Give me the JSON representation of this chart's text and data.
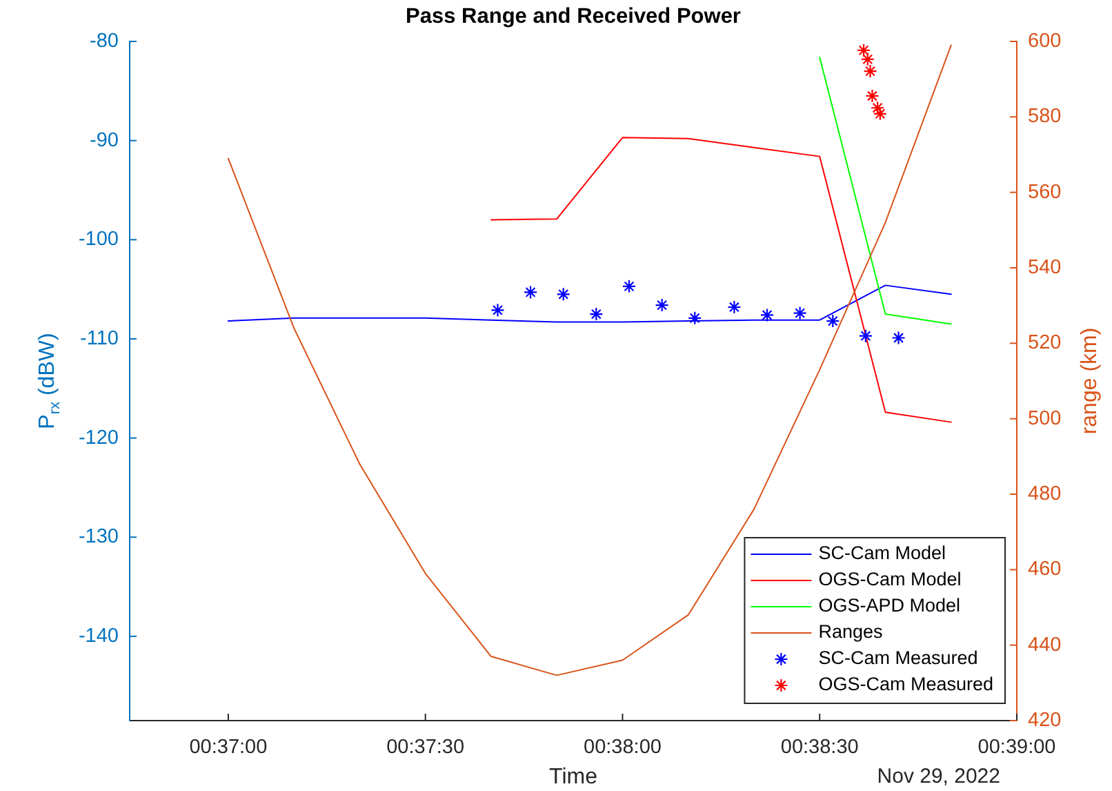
{
  "chart_data": {
    "type": "line",
    "title": "Pass Range and Received Power",
    "xlabel": "Time",
    "ylabel": "P$_{rx}$ (dBW)",
    "y2label": "range (km)",
    "annotations": [
      "Nov 29, 2022"
    ],
    "xlim": [
      "2022-11-29T00:36:45",
      "2022-11-29T00:39:00"
    ],
    "xticks": [
      {
        "value": "2022-11-29T00:37:00",
        "label": "00:37:00"
      },
      {
        "value": "2022-11-29T00:37:30",
        "label": "00:37:30"
      },
      {
        "value": "2022-11-29T00:38:00",
        "label": "00:38:00"
      },
      {
        "value": "2022-11-29T00:38:30",
        "label": "00:38:30"
      },
      {
        "value": "2022-11-29T00:39:00",
        "label": "00:39:00"
      }
    ],
    "ylim": [
      -148.5,
      -80
    ],
    "yticks": [
      -140,
      -130,
      -120,
      -110,
      -100,
      -90,
      -80
    ],
    "y2lim": [
      420,
      600
    ],
    "y2ticks": [
      420,
      440,
      460,
      480,
      500,
      520,
      540,
      560,
      580,
      600
    ],
    "legend": "bottom right",
    "series": [
      {
        "name": "SC-Cam Model",
        "color": "#0000ff",
        "x": [
          "2022-11-29T00:37:00",
          "2022-11-29T00:37:10",
          "2022-11-29T00:37:20",
          "2022-11-29T00:37:30",
          "2022-11-29T00:37:40",
          "2022-11-29T00:37:50",
          "2022-11-29T00:38:00",
          "2022-11-29T00:38:10",
          "2022-11-29T00:38:20",
          "2022-11-29T00:38:30",
          "2022-11-29T00:38:40",
          "2022-11-29T00:38:50"
        ],
        "values": [
          -108.2,
          -107.9,
          -107.9,
          -107.9,
          -108.1,
          -108.3,
          -108.3,
          -108.2,
          -108.1,
          -108.1,
          -104.6,
          -105.5
        ]
      },
      {
        "name": "OGS-Cam Model",
        "color": "#ff0000",
        "x": [
          "2022-11-29T00:37:40",
          "2022-11-29T00:37:50",
          "2022-11-29T00:38:00",
          "2022-11-29T00:38:10",
          "2022-11-29T00:38:20",
          "2022-11-29T00:38:30",
          "2022-11-29T00:38:40",
          "2022-11-29T00:38:50"
        ],
        "values": [
          -98.0,
          -97.9,
          -89.7,
          -89.8,
          -90.7,
          -91.6,
          -117.4,
          -118.4
        ]
      },
      {
        "name": "OGS-APD Model",
        "color": "#00ff00",
        "x": [
          "2022-11-29T00:38:30",
          "2022-11-29T00:38:40",
          "2022-11-29T00:38:50"
        ],
        "values": [
          -81.6,
          -107.5,
          -108.5
        ]
      },
      {
        "name": "Ranges",
        "color": "#d95319",
        "axis": "y2",
        "x": [
          "2022-11-29T00:37:00",
          "2022-11-29T00:37:10",
          "2022-11-29T00:37:20",
          "2022-11-29T00:37:30",
          "2022-11-29T00:37:40",
          "2022-11-29T00:37:50",
          "2022-11-29T00:38:00",
          "2022-11-29T00:38:10",
          "2022-11-29T00:38:20",
          "2022-11-29T00:38:30",
          "2022-11-29T00:38:40",
          "2022-11-29T00:38:50"
        ],
        "values": [
          569,
          524,
          488,
          459,
          437,
          432,
          436,
          448,
          476,
          513,
          552,
          599
        ]
      },
      {
        "name": "SC-Cam Measured",
        "type": "scatter",
        "color": "#0000ff",
        "marker": "cross",
        "x": [
          "2022-11-29T00:37:41",
          "2022-11-29T00:37:46",
          "2022-11-29T00:37:51",
          "2022-11-29T00:37:56",
          "2022-11-29T00:38:01",
          "2022-11-29T00:38:06",
          "2022-11-29T00:38:11",
          "2022-11-29T00:38:17",
          "2022-11-29T00:38:22",
          "2022-11-29T00:38:27",
          "2022-11-29T00:38:32",
          "2022-11-29T00:38:37",
          "2022-11-29T00:38:42"
        ],
        "values": [
          -107.1,
          -105.3,
          -105.5,
          -107.5,
          -104.7,
          -106.6,
          -107.9,
          -106.8,
          -107.6,
          -107.4,
          -108.2,
          -109.7,
          -109.9
        ]
      },
      {
        "name": "OGS-Cam Measured",
        "type": "scatter",
        "color": "#ff0000",
        "marker": "cross",
        "x": [
          "2022-11-29T00:38:36.7",
          "2022-11-29T00:38:37.3",
          "2022-11-29T00:38:37.7",
          "2022-11-29T00:38:38.0",
          "2022-11-29T00:38:38.8",
          "2022-11-29T00:38:39.2"
        ],
        "values": [
          -80.9,
          -81.8,
          -83.0,
          -85.5,
          -86.7,
          -87.3
        ]
      }
    ]
  }
}
